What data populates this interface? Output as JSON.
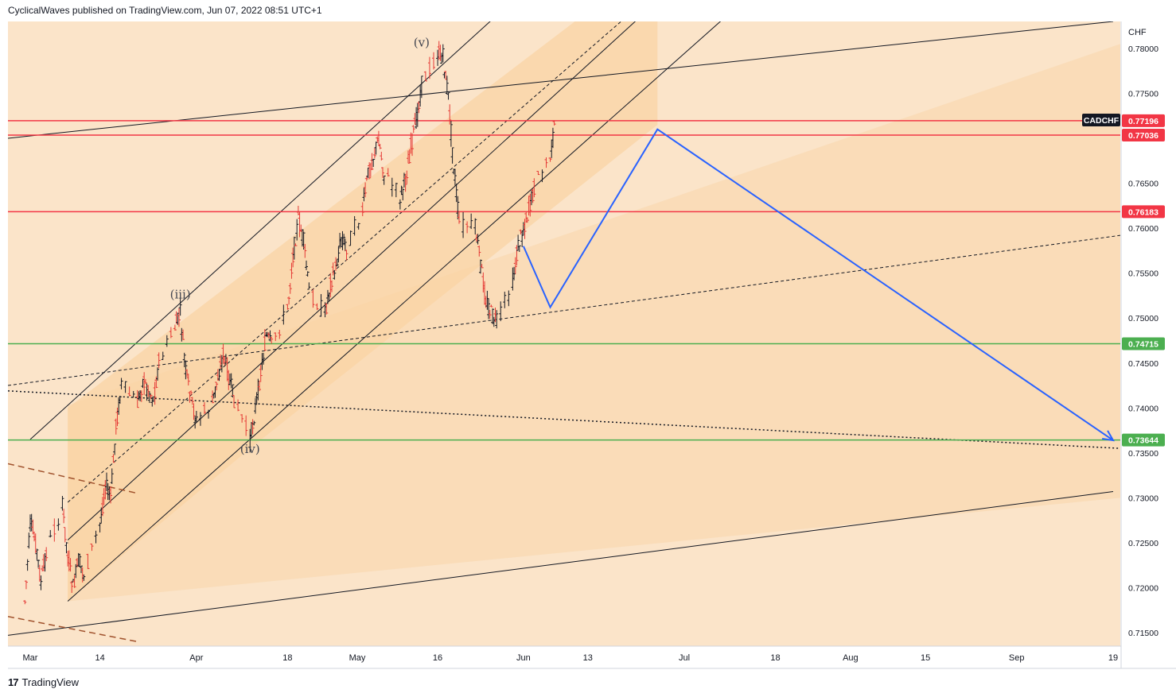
{
  "header": {
    "publisher": "CyclicalWaves published on TradingView.com, Jun 07, 2022 08:51 UTC+1"
  },
  "footer": {
    "logo": "17",
    "brand": "TradingView"
  },
  "colors": {
    "background": "#fbe4c9",
    "channel_fill": "#f9d3a3",
    "bull": "#131722",
    "bear": "#e53935",
    "resistance": "#f23645",
    "support": "#4caf50",
    "projection": "#2962ff",
    "trendline": "#131722",
    "dashed_brown": "#a0522d"
  },
  "chart_data": {
    "type": "line",
    "symbol": "CADCHF",
    "currency": "CHF",
    "ylim": [
      0.7135,
      0.783
    ],
    "y_ticks": [
      "0.78000",
      "0.77500",
      "0.77000",
      "0.76500",
      "0.76000",
      "0.75500",
      "0.75000",
      "0.74500",
      "0.74000",
      "0.73500",
      "0.73000",
      "0.72500",
      "0.72000",
      "0.71500"
    ],
    "x_ticks": [
      "Mar",
      "14",
      "Apr",
      "18",
      "May",
      "16",
      "Jun",
      "13",
      "Jul",
      "18",
      "Aug",
      "15",
      "Sep",
      "19"
    ],
    "horizontal_levels": [
      {
        "label": "0.77196",
        "value": 0.77196,
        "kind": "resistance"
      },
      {
        "label": "0.77036",
        "value": 0.77036,
        "kind": "resistance"
      },
      {
        "label": "0.76183",
        "value": 0.76183,
        "kind": "resistance"
      },
      {
        "label": "0.74715",
        "value": 0.74715,
        "kind": "support"
      },
      {
        "label": "0.73644",
        "value": 0.73644,
        "kind": "support"
      }
    ],
    "wave_labels": [
      {
        "label": "(iii)",
        "date": "Mar 29",
        "value": 0.7522
      },
      {
        "label": "(iv)",
        "date": "Apr 11",
        "value": 0.735
      },
      {
        "label": "(v)",
        "date": "May 13",
        "value": 0.7802
      }
    ],
    "price_path": [
      [
        "Feb 28",
        0.7185
      ],
      [
        "Mar 01",
        0.727
      ],
      [
        "Mar 02",
        0.725
      ],
      [
        "Mar 03",
        0.7205
      ],
      [
        "Mar 04",
        0.724
      ],
      [
        "Mar 07",
        0.729
      ],
      [
        "Mar 08",
        0.7235
      ],
      [
        "Mar 09",
        0.72
      ],
      [
        "Mar 10",
        0.723
      ],
      [
        "Mar 11",
        0.7215
      ],
      [
        "Mar 14",
        0.727
      ],
      [
        "Mar 15",
        0.7315
      ],
      [
        "Mar 16",
        0.73
      ],
      [
        "Mar 17",
        0.738
      ],
      [
        "Mar 18",
        0.7425
      ],
      [
        "Mar 21",
        0.7405
      ],
      [
        "Mar 22",
        0.743
      ],
      [
        "Mar 23",
        0.742
      ],
      [
        "Mar 24",
        0.741
      ],
      [
        "Mar 25",
        0.745
      ],
      [
        "Mar 28",
        0.749
      ],
      [
        "Mar 29",
        0.7505
      ],
      [
        "Mar 30",
        0.744
      ],
      [
        "Mar 31",
        0.741
      ],
      [
        "Apr 01",
        0.7385
      ],
      [
        "Apr 04",
        0.7405
      ],
      [
        "Apr 05",
        0.7435
      ],
      [
        "Apr 06",
        0.746
      ],
      [
        "Apr 07",
        0.7435
      ],
      [
        "Apr 08",
        0.741
      ],
      [
        "Apr 11",
        0.7365
      ],
      [
        "Apr 12",
        0.74
      ],
      [
        "Apr 13",
        0.744
      ],
      [
        "Apr 14",
        0.748
      ],
      [
        "Apr 15",
        0.747
      ],
      [
        "Apr 18",
        0.751
      ],
      [
        "Apr 19",
        0.757
      ],
      [
        "Apr 20",
        0.761
      ],
      [
        "Apr 21",
        0.7585
      ],
      [
        "Apr 22",
        0.753
      ],
      [
        "Apr 25",
        0.7505
      ],
      [
        "Apr 26",
        0.754
      ],
      [
        "Apr 27",
        0.7555
      ],
      [
        "Apr 28",
        0.759
      ],
      [
        "Apr 29",
        0.758
      ],
      [
        "May 02",
        0.762
      ],
      [
        "May 03",
        0.766
      ],
      [
        "May 04",
        0.768
      ],
      [
        "May 05",
        0.77
      ],
      [
        "May 06",
        0.766
      ],
      [
        "May 09",
        0.7635
      ],
      [
        "May 10",
        0.7655
      ],
      [
        "May 11",
        0.769
      ],
      [
        "May 12",
        0.772
      ],
      [
        "May 13",
        0.776
      ],
      [
        "May 16",
        0.7795
      ],
      [
        "May 17",
        0.779
      ],
      [
        "May 18",
        0.7745
      ],
      [
        "May 19",
        0.767
      ],
      [
        "May 20",
        0.7605
      ],
      [
        "May 23",
        0.76
      ],
      [
        "May 24",
        0.756
      ],
      [
        "May 25",
        0.752
      ],
      [
        "May 26",
        0.7505
      ],
      [
        "May 27",
        0.7495
      ],
      [
        "May 30",
        0.754
      ],
      [
        "May 31",
        0.758
      ],
      [
        "Jun 01",
        0.76
      ],
      [
        "Jun 02",
        0.762
      ],
      [
        "Jun 03",
        0.7645
      ],
      [
        "Jun 06",
        0.768
      ],
      [
        "Jun 07",
        0.772
      ]
    ],
    "projection_path": [
      [
        "Jun 01",
        0.758
      ],
      [
        "Jun 06",
        0.7512
      ],
      [
        "Jun 26",
        0.771
      ],
      [
        "Sep 19",
        0.7364
      ]
    ]
  }
}
